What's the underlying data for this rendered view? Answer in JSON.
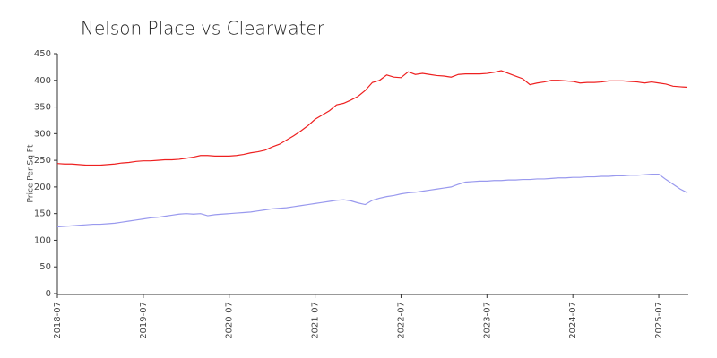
{
  "chart_data": {
    "type": "line",
    "title": "Nelson Place vs Clearwater",
    "y_label": "Price Per Sq Ft",
    "x": [
      "2018-07",
      "2018-08",
      "2018-09",
      "2018-10",
      "2018-11",
      "2018-12",
      "2019-01",
      "2019-02",
      "2019-03",
      "2019-04",
      "2019-05",
      "2019-06",
      "2019-07",
      "2019-08",
      "2019-09",
      "2019-10",
      "2019-11",
      "2019-12",
      "2020-01",
      "2020-02",
      "2020-03",
      "2020-04",
      "2020-05",
      "2020-06",
      "2020-07",
      "2020-08",
      "2020-09",
      "2020-10",
      "2020-11",
      "2020-12",
      "2021-01",
      "2021-02",
      "2021-03",
      "2021-04",
      "2021-05",
      "2021-06",
      "2021-07",
      "2021-08",
      "2021-09",
      "2021-10",
      "2021-11",
      "2021-12",
      "2022-01",
      "2022-02",
      "2022-03",
      "2022-04",
      "2022-05",
      "2022-06",
      "2022-07",
      "2022-08",
      "2022-09",
      "2022-10",
      "2022-11",
      "2022-12",
      "2023-01",
      "2023-02",
      "2023-03",
      "2023-04",
      "2023-05",
      "2023-06",
      "2023-07",
      "2023-08",
      "2023-09",
      "2023-10",
      "2023-11",
      "2023-12",
      "2024-01",
      "2024-02",
      "2024-03",
      "2024-04",
      "2024-05",
      "2024-06",
      "2024-07",
      "2024-08",
      "2024-09",
      "2024-10",
      "2024-11",
      "2024-12",
      "2025-01",
      "2025-02",
      "2025-03",
      "2025-04",
      "2025-05",
      "2025-06",
      "2025-07",
      "2025-08",
      "2025-09",
      "2025-10",
      "2025-11"
    ],
    "series": [
      {
        "color": "#ee2020",
        "values": [
          244,
          243,
          243,
          242,
          241,
          241,
          241,
          242,
          243,
          245,
          246,
          248,
          249,
          249,
          250,
          251,
          251,
          252,
          254,
          256,
          259,
          259,
          258,
          258,
          258,
          259,
          261,
          264,
          266,
          269,
          275,
          280,
          288,
          296,
          305,
          315,
          327,
          335,
          343,
          354,
          357,
          363,
          370,
          381,
          396,
          400,
          410,
          406,
          405,
          416,
          411,
          413,
          411,
          409,
          408,
          406,
          411,
          412,
          412,
          412,
          413,
          415,
          418,
          413,
          408,
          403,
          392,
          395,
          397,
          400,
          400,
          399,
          398,
          395,
          396,
          396,
          397,
          399,
          399,
          399,
          398,
          397,
          395,
          397,
          395,
          393,
          389,
          388,
          387
        ]
      },
      {
        "color": "#9999ee",
        "values": [
          125,
          126,
          127,
          128,
          129,
          130,
          130,
          131,
          132,
          134,
          136,
          138,
          140,
          142,
          143,
          145,
          147,
          149,
          150,
          149,
          150,
          146,
          148,
          149,
          150,
          151,
          152,
          153,
          155,
          157,
          159,
          160,
          161,
          163,
          165,
          167,
          169,
          171,
          173,
          175,
          176,
          174,
          170,
          167,
          175,
          179,
          182,
          184,
          187,
          189,
          190,
          192,
          194,
          196,
          198,
          200,
          205,
          209,
          210,
          211,
          211,
          212,
          212,
          213,
          213,
          214,
          214,
          215,
          215,
          216,
          217,
          217,
          218,
          218,
          219,
          219,
          220,
          220,
          221,
          221,
          222,
          222,
          223,
          224,
          224,
          214,
          205,
          196,
          189
        ]
      }
    ],
    "xticks": [
      "2018-07",
      "2019-07",
      "2020-07",
      "2021-07",
      "2022-07",
      "2023-07",
      "2024-07",
      "2025-07"
    ],
    "ylim": [
      0,
      450
    ],
    "yticks": [
      0,
      50,
      100,
      150,
      200,
      250,
      300,
      350,
      400,
      450
    ],
    "grid": false
  }
}
